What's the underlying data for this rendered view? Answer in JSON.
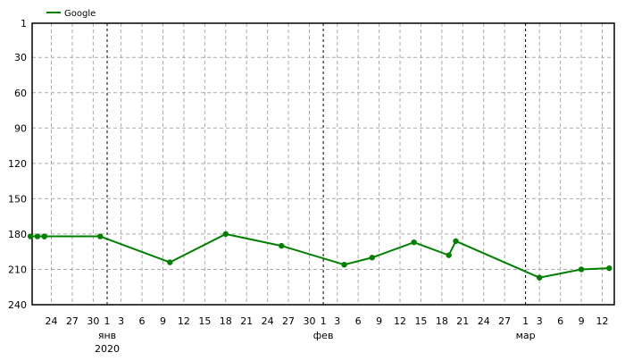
{
  "chart_data": {
    "type": "line",
    "title": "",
    "xlabel": "",
    "ylabel": "",
    "y_inverted": true,
    "ylim": [
      1,
      240
    ],
    "xlim": [
      "2019-12-21",
      "2020-03-13"
    ],
    "grid": true,
    "legend_position": "top-left",
    "y_ticks": [
      1,
      30,
      60,
      90,
      120,
      150,
      180,
      210,
      240
    ],
    "x_ticks": [
      {
        "date": "2019-12-24",
        "label": "24"
      },
      {
        "date": "2019-12-27",
        "label": "27"
      },
      {
        "date": "2019-12-30",
        "label": "30"
      },
      {
        "date": "2020-01-01",
        "label": "1"
      },
      {
        "date": "2020-01-03",
        "label": "3"
      },
      {
        "date": "2020-01-06",
        "label": "6"
      },
      {
        "date": "2020-01-09",
        "label": "9"
      },
      {
        "date": "2020-01-12",
        "label": "12"
      },
      {
        "date": "2020-01-15",
        "label": "15"
      },
      {
        "date": "2020-01-18",
        "label": "18"
      },
      {
        "date": "2020-01-21",
        "label": "21"
      },
      {
        "date": "2020-01-24",
        "label": "24"
      },
      {
        "date": "2020-01-27",
        "label": "27"
      },
      {
        "date": "2020-01-30",
        "label": "30"
      },
      {
        "date": "2020-02-01",
        "label": "1"
      },
      {
        "date": "2020-02-03",
        "label": "3"
      },
      {
        "date": "2020-02-06",
        "label": "6"
      },
      {
        "date": "2020-02-09",
        "label": "9"
      },
      {
        "date": "2020-02-12",
        "label": "12"
      },
      {
        "date": "2020-02-15",
        "label": "15"
      },
      {
        "date": "2020-02-18",
        "label": "18"
      },
      {
        "date": "2020-02-21",
        "label": "21"
      },
      {
        "date": "2020-02-24",
        "label": "24"
      },
      {
        "date": "2020-02-27",
        "label": "27"
      },
      {
        "date": "2020-03-01",
        "label": "1"
      },
      {
        "date": "2020-03-03",
        "label": "3"
      },
      {
        "date": "2020-03-06",
        "label": "6"
      },
      {
        "date": "2020-03-09",
        "label": "9"
      },
      {
        "date": "2020-03-12",
        "label": "12"
      }
    ],
    "month_labels": [
      {
        "date": "2020-01-01",
        "label": "янв"
      },
      {
        "date": "2020-02-01",
        "label": "фев"
      },
      {
        "date": "2020-03-01",
        "label": "мар"
      }
    ],
    "year_labels": [
      {
        "date": "2020-01-01",
        "label": "2020"
      }
    ],
    "series": [
      {
        "name": "Google",
        "color": "#008000",
        "points": [
          {
            "x": "2019-12-21",
            "y": 182
          },
          {
            "x": "2019-12-22",
            "y": 182
          },
          {
            "x": "2019-12-23",
            "y": 182
          },
          {
            "x": "2019-12-23",
            "y": 182
          },
          {
            "x": "2019-12-31",
            "y": 182
          },
          {
            "x": "2020-01-10",
            "y": 204
          },
          {
            "x": "2020-01-18",
            "y": 180
          },
          {
            "x": "2020-01-26",
            "y": 190
          },
          {
            "x": "2020-02-04",
            "y": 206
          },
          {
            "x": "2020-02-08",
            "y": 200
          },
          {
            "x": "2020-02-14",
            "y": 187
          },
          {
            "x": "2020-02-19",
            "y": 198
          },
          {
            "x": "2020-02-20",
            "y": 186
          },
          {
            "x": "2020-03-03",
            "y": 217
          },
          {
            "x": "2020-03-09",
            "y": 210
          },
          {
            "x": "2020-03-13",
            "y": 209
          }
        ]
      }
    ]
  }
}
